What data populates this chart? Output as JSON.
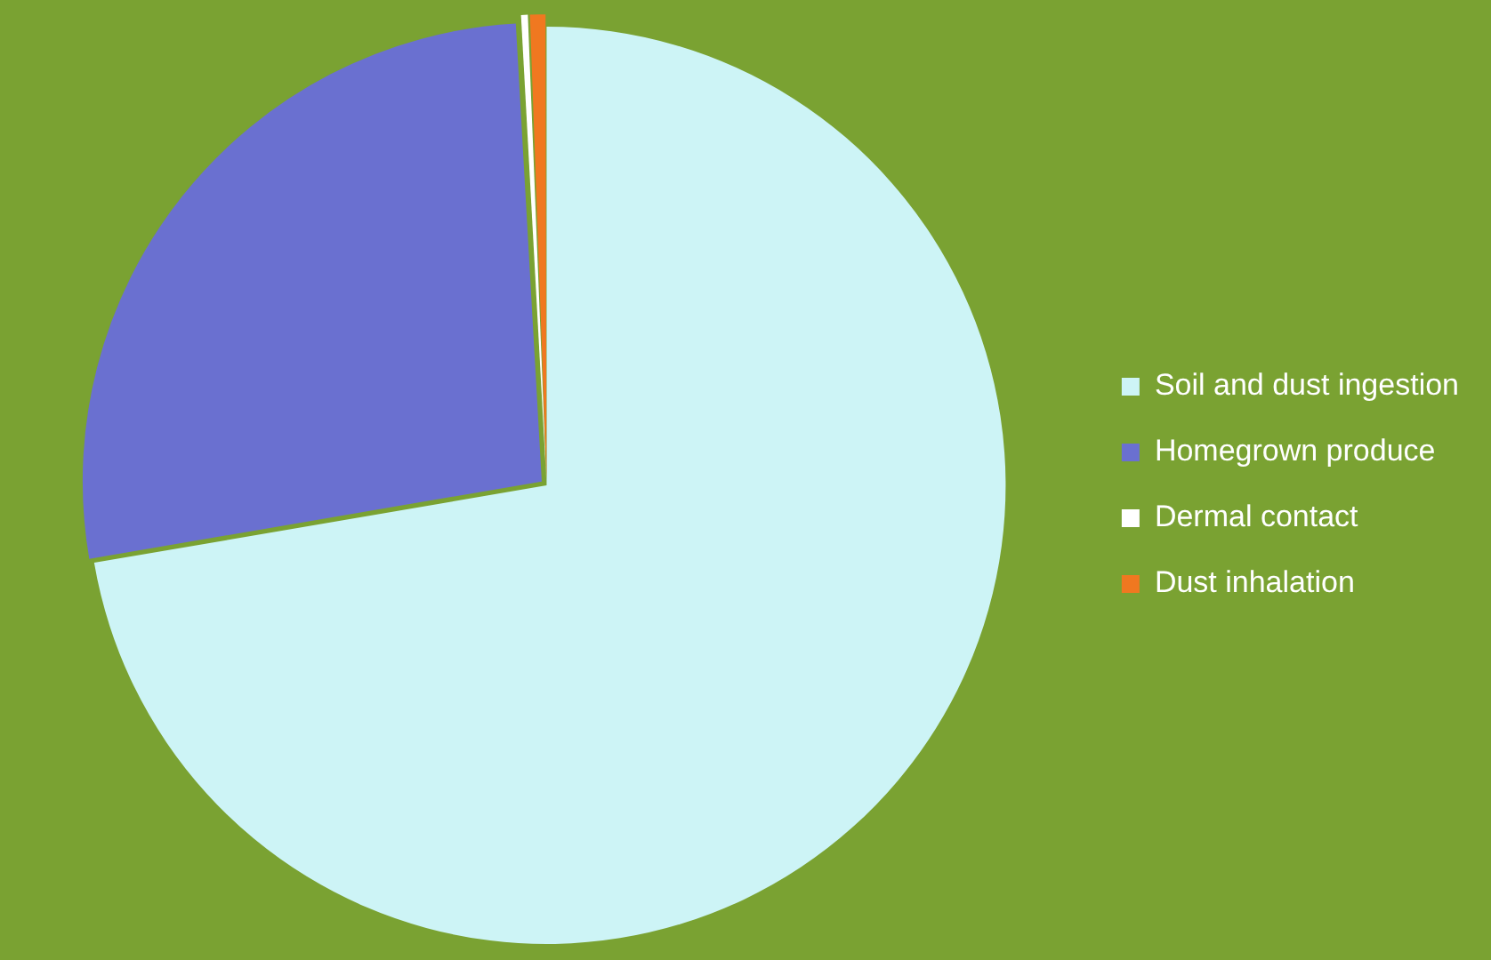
{
  "chart_data": {
    "type": "pie",
    "categories": [
      "Soil and dust ingestion",
      "Homegrown produce",
      "Dermal contact",
      "Dust inhalation"
    ],
    "values": [
      72.3,
      26.8,
      0.3,
      0.6
    ],
    "colors": [
      "#cdf4f6",
      "#6a70d0",
      "#ffffff",
      "#f07820"
    ],
    "legend": "right"
  }
}
